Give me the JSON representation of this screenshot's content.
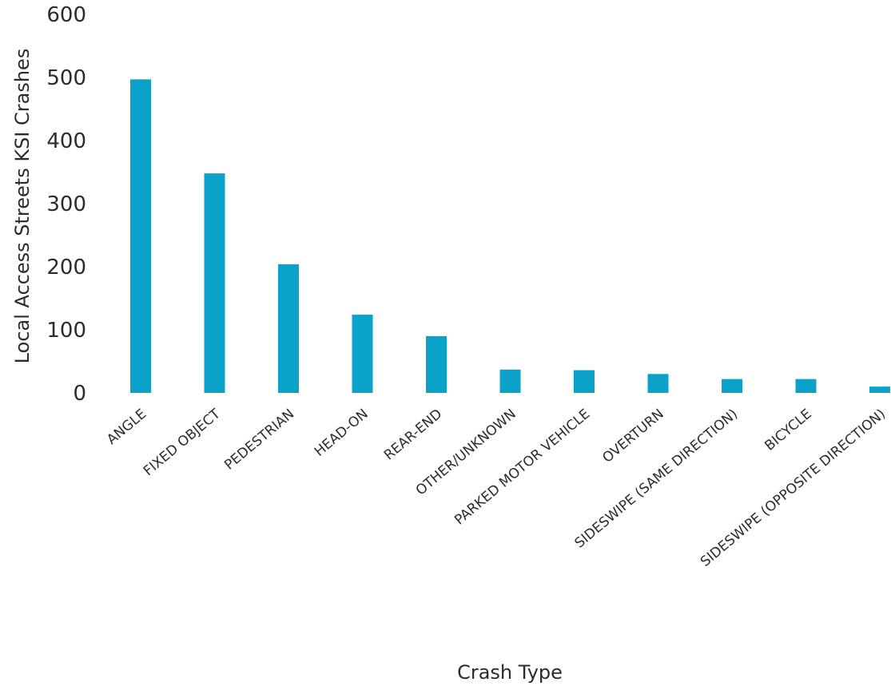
{
  "chart_data": {
    "type": "bar",
    "xlabel": "Crash Type",
    "ylabel": "Local Access Streets KSI Crashes",
    "ylim": [
      0,
      600
    ],
    "yticks": [
      0,
      100,
      200,
      300,
      400,
      500,
      600
    ],
    "categories": [
      "ANGLE",
      "FIXED OBJECT",
      "PEDESTRIAN",
      "HEAD-ON",
      "REAR-END",
      "OTHER/UNKNOWN",
      "PARKED MOTOR VEHICLE",
      "OVERTURN",
      "SIDESWIPE (SAME DIRECTION)",
      "BICYCLE",
      "SIDESWIPE (OPPOSITE DIRECTION)"
    ],
    "values": [
      497,
      348,
      204,
      124,
      90,
      37,
      36,
      30,
      22,
      22,
      10
    ],
    "bar_color": "#0aa2c8",
    "grid": false,
    "legend": "none"
  }
}
